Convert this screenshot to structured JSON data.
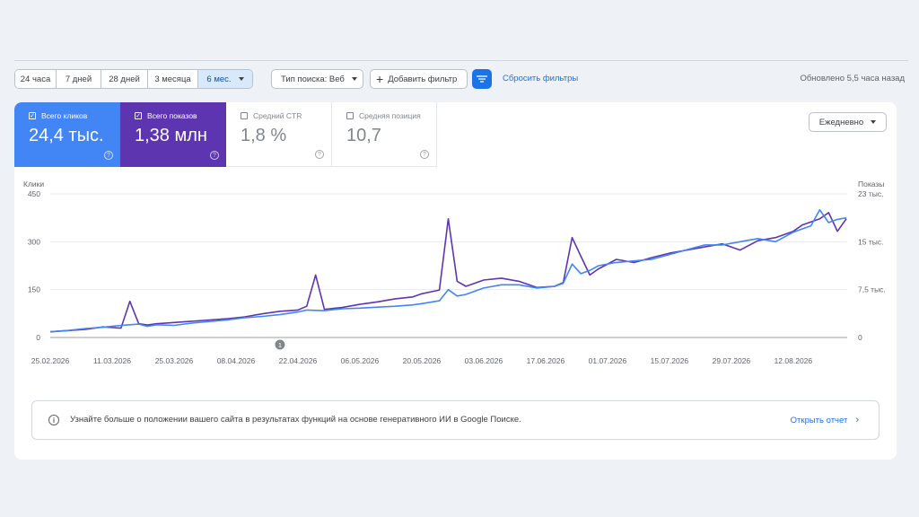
{
  "toolbar": {
    "ranges": [
      "24 часа",
      "7 дней",
      "28 дней",
      "3 месяца",
      "6 мес."
    ],
    "active_range": "6 мес.",
    "search_type": "Тип поиска: Веб",
    "add_filter": "Добавить фильтр",
    "reset_filters": "Сбросить фильтры",
    "updated": "Обновлено 5,5 часа назад"
  },
  "metrics": [
    {
      "label": "Всего кликов",
      "value": "24,4 тыс.",
      "checked": true,
      "color": "#4285f4"
    },
    {
      "label": "Всего показов",
      "value": "1,38 млн",
      "checked": true,
      "color": "#5e35b1"
    },
    {
      "label": "Средний CTR",
      "value": "1,8 %",
      "checked": false
    },
    {
      "label": "Средняя позиция",
      "value": "10,7",
      "checked": false
    }
  ],
  "granularity": "Ежедневно",
  "chart_data": {
    "type": "line",
    "x": [
      "25.02.2026",
      "01.03.2026",
      "05.03.2026",
      "09.03.2026",
      "13.03.2026",
      "15.03.2026",
      "17.03.2026",
      "19.03.2026",
      "21.03.2026",
      "25.03.2026",
      "29.03.2026",
      "02.04.2026",
      "06.04.2026",
      "10.04.2026",
      "14.04.2026",
      "18.04.2026",
      "22.04.2026",
      "24.04.2026",
      "26.04.2026",
      "28.04.2026",
      "02.05.2026",
      "06.05.2026",
      "10.05.2026",
      "14.05.2026",
      "18.05.2026",
      "20.05.2026",
      "24.05.2026",
      "26.05.2026",
      "28.05.2026",
      "30.05.2026",
      "01.06.2026",
      "03.06.2026",
      "07.06.2026",
      "11.06.2026",
      "15.06.2026",
      "19.06.2026",
      "21.06.2026",
      "23.06.2026",
      "25.06.2026",
      "27.06.2026",
      "29.06.2026",
      "03.07.2026",
      "07.07.2026",
      "11.07.2026",
      "15.07.2026",
      "19.07.2026",
      "23.07.2026",
      "27.07.2026",
      "31.07.2026",
      "04.08.2026",
      "08.08.2026",
      "12.08.2026",
      "14.08.2026",
      "16.08.2026",
      "18.08.2026",
      "20.08.2026",
      "22.08.2026",
      "24.08.2026"
    ],
    "series": [
      {
        "name": "Всего кликов",
        "axis": "left",
        "color": "#4285f4",
        "values": [
          18,
          22,
          28,
          32,
          38,
          40,
          42,
          35,
          40,
          38,
          45,
          50,
          55,
          62,
          66,
          72,
          80,
          86,
          85,
          84,
          90,
          92,
          95,
          98,
          102,
          106,
          115,
          150,
          130,
          135,
          145,
          155,
          165,
          165,
          155,
          160,
          170,
          230,
          200,
          210,
          225,
          235,
          240,
          245,
          260,
          275,
          290,
          290,
          300,
          310,
          300,
          330,
          340,
          350,
          400,
          360,
          370,
          375
        ]
      },
      {
        "name": "Всего показов",
        "axis": "right",
        "color": "#5e35b1",
        "values": [
          900,
          1100,
          1300,
          1700,
          1500,
          5800,
          2200,
          2000,
          2200,
          2400,
          2600,
          2800,
          3000,
          3300,
          3800,
          4200,
          4400,
          5000,
          10000,
          4500,
          4800,
          5300,
          5700,
          6200,
          6500,
          7000,
          7600,
          19000,
          9000,
          8200,
          8700,
          9200,
          9500,
          9000,
          8000,
          8200,
          8800,
          16000,
          13000,
          10000,
          11000,
          12500,
          12000,
          12800,
          13500,
          14000,
          14500,
          15000,
          14000,
          15500,
          16000,
          17000,
          18000,
          18500,
          19000,
          20000,
          17000,
          19000
        ]
      }
    ],
    "left_axis": {
      "label": "Клики",
      "ticks": [
        "0",
        "150",
        "300",
        "450"
      ],
      "ylim": [
        0,
        450
      ]
    },
    "right_axis": {
      "label": "Показы",
      "ticks": [
        "0",
        "7,5 тыс.",
        "15 тыс.",
        "23 тыс."
      ],
      "ylim": [
        0,
        23000
      ]
    },
    "x_ticks": [
      "25.02.2026",
      "11.03.2026",
      "25.03.2026",
      "08.04.2026",
      "22.04.2026",
      "06.05.2026",
      "20.05.2026",
      "03.06.2026",
      "17.06.2026",
      "01.07.2026",
      "15.07.2026",
      "29.07.2026",
      "12.08.2026"
    ],
    "annotation": "1",
    "grid": true
  },
  "info": {
    "text": "Узнайте больше о положении вашего сайта в результатах функций на основе генеративного ИИ в Google Поиске.",
    "link": "Открыть отчет"
  }
}
